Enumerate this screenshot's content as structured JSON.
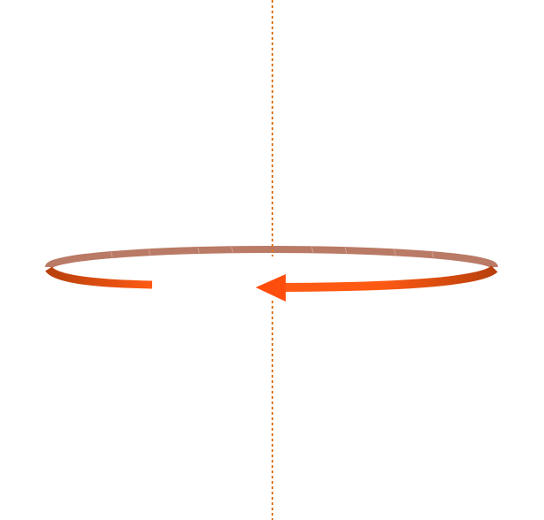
{
  "diagram": {
    "type": "rotation-around-axis",
    "rotation_direction": "counterclockwise-arrow",
    "colors": {
      "background": "#ffffff",
      "axis": "#e07a1f",
      "band_back": "#b97a66",
      "band_back_highlight": "#d6a393",
      "band_front_dark": "#b8400c",
      "band_front_light": "#ff5a14",
      "arrowhead": "#ff4d0d"
    },
    "icons": {
      "axis": "dotted-vertical-axis-line",
      "ring": "elliptical-rotation-ring",
      "arrowhead": "triangle-arrowhead-icon"
    }
  }
}
